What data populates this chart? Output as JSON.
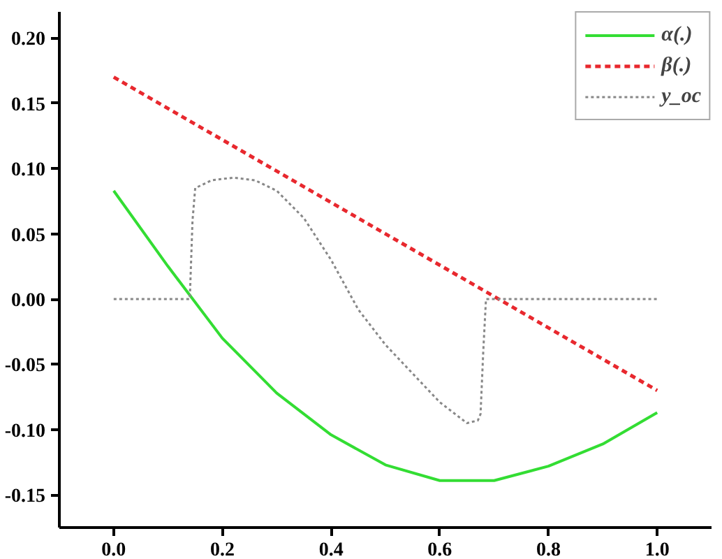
{
  "chart_data": {
    "type": "line",
    "xlim": [
      -0.1,
      1.1
    ],
    "ylim": [
      -0.175,
      0.22
    ],
    "xticks": [
      {
        "value": 0.0,
        "label": "0.0"
      },
      {
        "value": 0.2,
        "label": "0.2"
      },
      {
        "value": 0.4,
        "label": "0.4"
      },
      {
        "value": 0.6,
        "label": "0.6"
      },
      {
        "value": 0.8,
        "label": "0.8"
      },
      {
        "value": 1.0,
        "label": "1.0"
      }
    ],
    "yticks": [
      {
        "value": -0.15,
        "label": "-0.15"
      },
      {
        "value": -0.1,
        "label": "-0.10"
      },
      {
        "value": -0.05,
        "label": "-0.05"
      },
      {
        "value": 0.0,
        "label": "0.00"
      },
      {
        "value": 0.05,
        "label": "0.05"
      },
      {
        "value": 0.1,
        "label": "0.10"
      },
      {
        "value": 0.15,
        "label": "0.15"
      },
      {
        "value": 0.2,
        "label": "0.20"
      }
    ],
    "grid": false,
    "legend": "top right",
    "series": [
      {
        "name": "α(.)",
        "color": "#33dd33",
        "line_style": "solid",
        "x": [
          0,
          0.1,
          0.2,
          0.3,
          0.4,
          0.5,
          0.6,
          0.7,
          0.8,
          0.9,
          1.0
        ],
        "values": [
          0.083,
          0.025,
          -0.03,
          -0.072,
          -0.104,
          -0.127,
          -0.139,
          -0.139,
          -0.128,
          -0.111,
          -0.087
        ]
      },
      {
        "name": "β(.)",
        "color": "#e8282e",
        "line_style": "dashed",
        "x": [
          0,
          0.5,
          1.0
        ],
        "values": [
          0.17,
          0.05,
          -0.07
        ]
      },
      {
        "name": "y_oc",
        "color": "#888888",
        "line_style": "dotted",
        "x": [
          0,
          0.14,
          0.145,
          0.15,
          0.18,
          0.22,
          0.26,
          0.3,
          0.35,
          0.4,
          0.45,
          0.5,
          0.55,
          0.6,
          0.65,
          0.67,
          0.675,
          0.68,
          0.685,
          1.0
        ],
        "values": [
          0,
          0,
          0.06,
          0.085,
          0.091,
          0.093,
          0.091,
          0.083,
          0.062,
          0.03,
          -0.008,
          -0.035,
          -0.057,
          -0.079,
          -0.095,
          -0.093,
          -0.088,
          -0.04,
          0,
          0
        ]
      }
    ]
  }
}
